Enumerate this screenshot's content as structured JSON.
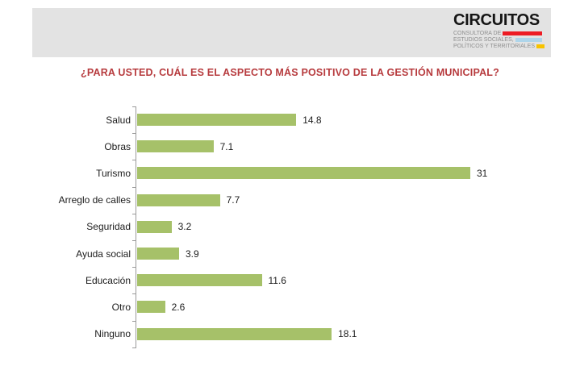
{
  "logo": {
    "title": "CIRCUITOS",
    "lines": [
      {
        "label": "CONSULTORA DE",
        "bar_color": "#ed1c24"
      },
      {
        "label": "ESTUDIOS SOCIALES,",
        "bar_color": "#aed5ea"
      },
      {
        "label": "POLÍTICOS Y TERRITORIALES",
        "bar_color": "#f8c300"
      }
    ]
  },
  "chart_data": {
    "type": "bar",
    "orientation": "horizontal",
    "title": "¿PARA USTED, CUÁL ES EL ASPECTO MÁS POSITIVO DE LA GESTIÓN MUNICIPAL?",
    "categories": [
      "Salud",
      "Obras",
      "Turismo",
      "Arreglo de calles",
      "Seguridad",
      "Ayuda social",
      "Educación",
      "Otro",
      "Ninguno"
    ],
    "values": [
      14.8,
      7.1,
      31,
      7.7,
      3.2,
      3.9,
      11.6,
      2.6,
      18.1
    ],
    "xlim": [
      0,
      31
    ],
    "grid": false,
    "legend": false,
    "data_labels": true,
    "bar_color": "#a6c169",
    "axis_color": "#9a9a9a",
    "title_color": "#b73b3e",
    "label_color": "#1c1c1c"
  },
  "colors": {
    "header_band": "#e3e3e3",
    "background": "#ffffff"
  }
}
